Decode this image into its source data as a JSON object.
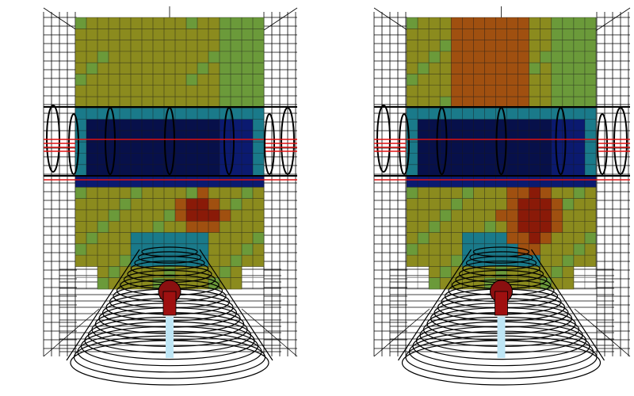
{
  "figure": {
    "panel_count": 2,
    "panels": [
      {
        "id": "left",
        "field_grid": {
          "cols": 17,
          "rows": 24
        },
        "colormap": {
          "background": "#8b8b1e",
          "mid": "#6b9a3a",
          "cool": "#1a7a8a",
          "cold": "#0b1a70",
          "coldest": "#07104a",
          "hot": "#a05010",
          "hottest": "#8a1a08"
        },
        "overlay": {
          "wireframe_color": "#000000",
          "highlight_color": "#e01010"
        }
      },
      {
        "id": "right",
        "field_grid": {
          "cols": 17,
          "rows": 24
        },
        "colormap": {
          "background": "#8b8b1e",
          "mid": "#6b9a3a",
          "cool": "#1a7a8a",
          "cold": "#0b1a70",
          "coldest": "#07104a",
          "hot": "#a05010",
          "hottest": "#8a1a08"
        },
        "overlay": {
          "wireframe_color": "#000000",
          "highlight_color": "#e01010"
        }
      }
    ]
  }
}
